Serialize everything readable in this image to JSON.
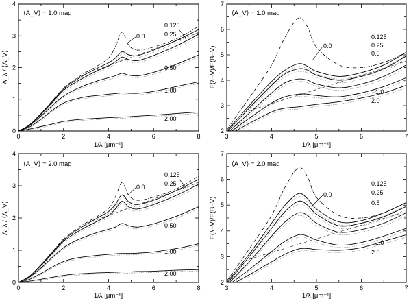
{
  "chart_data": [
    {
      "type": "line",
      "annotation": "⟨A_V⟩ = 1.0 mag",
      "xlabel": "1/λ [μm⁻¹]",
      "ylabel": "A_λ / ⟨A_V⟩",
      "xlim": [
        0,
        8
      ],
      "ylim": [
        0,
        4
      ],
      "xticks": [
        0,
        2,
        4,
        6,
        8
      ],
      "yticks": [
        0,
        1,
        2,
        3,
        4
      ],
      "series": [
        {
          "name": "0.0",
          "style": "dashdot",
          "x": [
            0,
            0.5,
            1,
            1.5,
            2,
            2.5,
            3,
            3.5,
            4,
            4.3,
            4.6,
            4.9,
            5.3,
            6,
            7,
            8
          ],
          "y": [
            0,
            0.2,
            0.55,
            0.95,
            1.35,
            1.62,
            1.85,
            2.05,
            2.3,
            2.65,
            3.12,
            2.7,
            2.55,
            2.65,
            2.9,
            3.3
          ]
        },
        {
          "name": "0.125",
          "style": "solid",
          "x": [
            0,
            0.5,
            1,
            1.5,
            2,
            2.5,
            3,
            3.5,
            4,
            4.3,
            4.6,
            4.9,
            5.3,
            6,
            7,
            8
          ],
          "y": [
            0,
            0.2,
            0.55,
            0.93,
            1.32,
            1.58,
            1.8,
            1.98,
            2.15,
            2.3,
            2.5,
            2.4,
            2.38,
            2.55,
            2.85,
            3.2
          ]
        },
        {
          "name": "0.25",
          "style": "solid",
          "x": [
            0,
            0.5,
            1,
            1.5,
            2,
            2.5,
            3,
            3.5,
            4,
            4.3,
            4.6,
            4.9,
            5.3,
            6,
            7,
            8
          ],
          "y": [
            0,
            0.19,
            0.53,
            0.9,
            1.28,
            1.52,
            1.72,
            1.9,
            2.05,
            2.18,
            2.33,
            2.25,
            2.22,
            2.38,
            2.68,
            3.05
          ]
        },
        {
          "name": "0.50",
          "style": "solid",
          "x": [
            0,
            0.5,
            1,
            1.5,
            2,
            2.5,
            3,
            3.5,
            4,
            4.3,
            4.6,
            4.9,
            5.3,
            6,
            7,
            8
          ],
          "y": [
            0,
            0.17,
            0.47,
            0.8,
            1.1,
            1.3,
            1.45,
            1.58,
            1.68,
            1.74,
            1.82,
            1.76,
            1.74,
            1.85,
            2.1,
            2.4
          ]
        },
        {
          "name": "1.00",
          "style": "solid",
          "x": [
            0,
            0.5,
            1,
            1.5,
            2,
            2.5,
            3,
            3.5,
            4,
            4.3,
            4.6,
            4.9,
            5.3,
            6,
            7,
            8
          ],
          "y": [
            0,
            0.13,
            0.37,
            0.65,
            0.88,
            1.0,
            1.08,
            1.12,
            1.16,
            1.18,
            1.2,
            1.19,
            1.19,
            1.25,
            1.4,
            1.55
          ]
        },
        {
          "name": "2.00",
          "style": "solid",
          "x": [
            0,
            0.5,
            1,
            1.5,
            2,
            2.5,
            3,
            3.5,
            4,
            4.3,
            4.6,
            4.9,
            5.3,
            6,
            7,
            8
          ],
          "y": [
            0,
            0.06,
            0.14,
            0.22,
            0.3,
            0.35,
            0.38,
            0.4,
            0.42,
            0.43,
            0.44,
            0.45,
            0.47,
            0.5,
            0.55,
            0.6
          ]
        }
      ]
    },
    {
      "type": "line",
      "annotation": "⟨A_V⟩ = 1.0 mag",
      "xlabel": "1/λ [μm⁻¹]",
      "ylabel": "E(λ−V)/E(B−V)",
      "xlim": [
        3,
        7
      ],
      "ylim": [
        2,
        7
      ],
      "xticks": [
        3,
        4,
        5,
        6,
        7
      ],
      "yticks": [
        2,
        3,
        4,
        5,
        6,
        7
      ],
      "series": [
        {
          "name": "0.0",
          "style": "dashdot",
          "x": [
            3,
            3.5,
            4,
            4.3,
            4.6,
            4.8,
            5,
            5.5,
            6,
            6.5,
            7
          ],
          "y": [
            2.05,
            3.3,
            4.6,
            5.7,
            6.45,
            6.1,
            5.3,
            4.6,
            4.5,
            4.7,
            5.1
          ]
        },
        {
          "name": "0.125",
          "style": "solid",
          "x": [
            3,
            3.5,
            4,
            4.3,
            4.6,
            4.8,
            5,
            5.5,
            6,
            6.5,
            7
          ],
          "y": [
            2.0,
            3.0,
            3.95,
            4.4,
            4.65,
            4.55,
            4.35,
            4.15,
            4.3,
            4.6,
            5.1
          ]
        },
        {
          "name": "0.25",
          "style": "solid",
          "x": [
            3,
            3.5,
            4,
            4.3,
            4.6,
            4.8,
            5,
            5.5,
            6,
            6.5,
            7
          ],
          "y": [
            1.95,
            2.9,
            3.8,
            4.25,
            4.45,
            4.4,
            4.2,
            4.0,
            4.15,
            4.45,
            4.95
          ]
        },
        {
          "name": "0.5",
          "style": "solid",
          "x": [
            3,
            3.5,
            4,
            4.3,
            4.6,
            4.8,
            5,
            5.5,
            6,
            6.5,
            7
          ],
          "y": [
            1.9,
            2.7,
            3.5,
            3.9,
            4.05,
            4.0,
            3.85,
            3.7,
            3.85,
            4.15,
            4.6
          ]
        },
        {
          "name": "1.0",
          "style": "solid",
          "x": [
            3,
            3.5,
            4,
            4.3,
            4.6,
            4.8,
            5,
            5.5,
            6,
            6.5,
            7
          ],
          "y": [
            1.85,
            2.5,
            3.1,
            3.35,
            3.45,
            3.45,
            3.4,
            3.35,
            3.5,
            3.75,
            4.1
          ]
        },
        {
          "name": "2.0",
          "style": "solid",
          "x": [
            3,
            3.5,
            4,
            4.3,
            4.6,
            4.8,
            5,
            5.5,
            6,
            6.5,
            7
          ],
          "y": [
            1.8,
            2.3,
            2.75,
            2.9,
            2.95,
            3.0,
            3.05,
            3.15,
            3.3,
            3.5,
            3.8
          ]
        }
      ]
    },
    {
      "type": "line",
      "annotation": "⟨A_V⟩ = 2.0 mag",
      "xlabel": "1/λ [μm⁻¹]",
      "ylabel": "A_λ / ⟨A_V⟩",
      "xlim": [
        0,
        8
      ],
      "ylim": [
        0,
        4
      ],
      "xticks": [
        0,
        2,
        4,
        6,
        8
      ],
      "yticks": [
        0,
        1,
        2,
        3,
        4
      ],
      "series": [
        {
          "name": "0.0",
          "style": "dashdot",
          "x": [
            0,
            0.5,
            1,
            1.5,
            2,
            2.5,
            3,
            3.5,
            4,
            4.3,
            4.6,
            4.9,
            5.3,
            6,
            7,
            8
          ],
          "y": [
            0,
            0.2,
            0.55,
            0.95,
            1.35,
            1.62,
            1.85,
            2.05,
            2.3,
            2.65,
            3.1,
            2.7,
            2.55,
            2.65,
            2.9,
            3.3
          ]
        },
        {
          "name": "0.125",
          "style": "solid",
          "x": [
            0,
            0.5,
            1,
            1.5,
            2,
            2.5,
            3,
            3.5,
            4,
            4.3,
            4.6,
            4.9,
            5.3,
            6,
            7,
            8
          ],
          "y": [
            0,
            0.2,
            0.55,
            0.93,
            1.32,
            1.58,
            1.8,
            2.0,
            2.2,
            2.42,
            2.72,
            2.5,
            2.42,
            2.55,
            2.85,
            3.2
          ]
        },
        {
          "name": "0.25",
          "style": "solid",
          "x": [
            0,
            0.5,
            1,
            1.5,
            2,
            2.5,
            3,
            3.5,
            4,
            4.3,
            4.6,
            4.9,
            5.3,
            6,
            7,
            8
          ],
          "y": [
            0,
            0.19,
            0.53,
            0.9,
            1.28,
            1.52,
            1.72,
            1.9,
            2.08,
            2.28,
            2.52,
            2.34,
            2.28,
            2.42,
            2.7,
            3.05
          ]
        },
        {
          "name": "0.50",
          "style": "solid",
          "x": [
            0,
            0.5,
            1,
            1.5,
            2,
            2.5,
            3,
            3.5,
            4,
            4.3,
            4.6,
            4.9,
            5.3,
            6,
            7,
            8
          ],
          "y": [
            0,
            0.17,
            0.45,
            0.78,
            1.08,
            1.28,
            1.43,
            1.55,
            1.65,
            1.72,
            1.83,
            1.76,
            1.72,
            1.82,
            2.05,
            2.35
          ]
        },
        {
          "name": "1.00",
          "style": "solid",
          "x": [
            0,
            0.5,
            1,
            1.5,
            2,
            2.5,
            3,
            3.5,
            4,
            4.3,
            4.6,
            4.9,
            5.3,
            6,
            7,
            8
          ],
          "y": [
            0,
            0.1,
            0.28,
            0.48,
            0.65,
            0.75,
            0.8,
            0.84,
            0.87,
            0.89,
            0.9,
            0.9,
            0.91,
            0.95,
            1.05,
            1.2
          ]
        },
        {
          "name": "2.00",
          "style": "solid",
          "x": [
            0,
            0.5,
            1,
            1.5,
            2,
            2.5,
            3,
            3.5,
            4,
            4.3,
            4.6,
            4.9,
            5.3,
            6,
            7,
            8
          ],
          "y": [
            0,
            0.04,
            0.1,
            0.16,
            0.22,
            0.26,
            0.28,
            0.3,
            0.31,
            0.32,
            0.33,
            0.33,
            0.34,
            0.35,
            0.38,
            0.4
          ]
        }
      ]
    },
    {
      "type": "line",
      "annotation": "⟨A_V⟩ = 2.0 mag",
      "xlabel": "1/λ [μm⁻¹]",
      "ylabel": "E(λ−V)/E(B−V)",
      "xlim": [
        3,
        7
      ],
      "ylim": [
        2,
        7
      ],
      "xticks": [
        3,
        4,
        5,
        6,
        7
      ],
      "yticks": [
        2,
        3,
        4,
        5,
        6,
        7
      ],
      "series": [
        {
          "name": "0.0",
          "style": "dashdot",
          "x": [
            3,
            3.5,
            4,
            4.3,
            4.6,
            4.8,
            5,
            5.5,
            6,
            6.5,
            7
          ],
          "y": [
            2.05,
            3.3,
            4.6,
            5.7,
            6.45,
            6.1,
            5.3,
            4.6,
            4.5,
            4.7,
            5.1
          ]
        },
        {
          "name": "0.125",
          "style": "solid",
          "x": [
            3,
            3.5,
            4,
            4.3,
            4.6,
            4.8,
            5,
            5.5,
            6,
            6.5,
            7
          ],
          "y": [
            2.0,
            3.1,
            4.3,
            5.0,
            5.45,
            5.25,
            4.85,
            4.35,
            4.4,
            4.7,
            5.1
          ]
        },
        {
          "name": "0.25",
          "style": "solid",
          "x": [
            3,
            3.5,
            4,
            4.3,
            4.6,
            4.8,
            5,
            5.5,
            6,
            6.5,
            7
          ],
          "y": [
            1.95,
            3.0,
            4.1,
            4.75,
            5.15,
            5.0,
            4.65,
            4.2,
            4.3,
            4.55,
            4.95
          ]
        },
        {
          "name": "0.5",
          "style": "solid",
          "x": [
            3,
            3.5,
            4,
            4.3,
            4.6,
            4.8,
            5,
            5.5,
            6,
            6.5,
            7
          ],
          "y": [
            1.9,
            2.8,
            3.8,
            4.35,
            4.7,
            4.6,
            4.3,
            3.95,
            4.05,
            4.3,
            4.7
          ]
        },
        {
          "name": "1.0",
          "style": "solid",
          "x": [
            3,
            3.5,
            4,
            4.3,
            4.6,
            4.8,
            5,
            5.5,
            6,
            6.5,
            7
          ],
          "y": [
            1.85,
            2.5,
            3.2,
            3.6,
            3.85,
            3.8,
            3.65,
            3.45,
            3.55,
            3.8,
            4.1
          ]
        },
        {
          "name": "2.0",
          "style": "solid",
          "x": [
            3,
            3.5,
            4,
            4.3,
            4.6,
            4.8,
            5,
            5.5,
            6,
            6.5,
            7
          ],
          "y": [
            1.8,
            2.3,
            2.8,
            3.1,
            3.3,
            3.32,
            3.28,
            3.25,
            3.35,
            3.6,
            3.85
          ]
        }
      ]
    }
  ]
}
